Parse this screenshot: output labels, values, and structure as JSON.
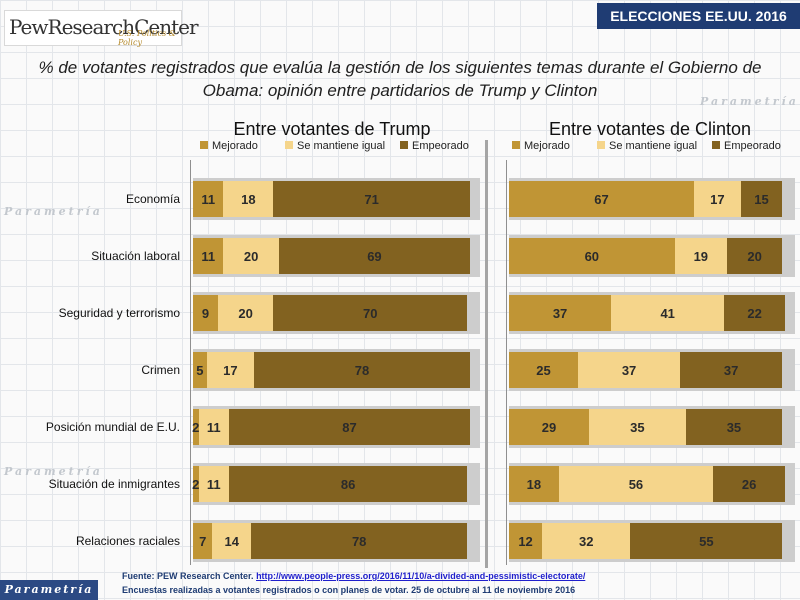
{
  "banner": "ELECCIONES EE.UU. 2016",
  "logo": {
    "main": "PewResearchCenter",
    "sub": "U.S. Politics & Policy"
  },
  "watermark": "Parametría",
  "footer_logo": "Parametría",
  "source_label": "Fuente: PEW Research Center.",
  "source_url": "http://www.people-press.org/2016/11/10/a-divided-and-pessimistic-electorate/",
  "note": "Encuestas realizadas a votantes registrados o con planes de votar. 25 de octubre al 11 de noviembre 2016",
  "colors": {
    "mejorado": "#c09535",
    "igual": "#f5d58b",
    "empeorado": "#826220"
  },
  "chart_data": {
    "type": "bar",
    "stacked": true,
    "orientation": "horizontal",
    "title": "% de votantes registrados que evalúa la gestión de los siguientes temas durante el Gobierno de Obama:  opinión entre partidarios de Trump y Clinton",
    "categories": [
      "Economía",
      "Situación laboral",
      "Seguridad y terrorismo",
      "Crimen",
      "Posición mundial de E.U.",
      "Situación de inmigrantes",
      "Relaciones raciales"
    ],
    "legend": [
      "Mejorado",
      "Se mantiene igual",
      "Empeorado"
    ],
    "panels": [
      {
        "title": "Entre votantes de Trump",
        "series": [
          {
            "name": "Mejorado",
            "values": [
              11,
              11,
              9,
              5,
              2,
              2,
              7
            ]
          },
          {
            "name": "Se mantiene igual",
            "values": [
              18,
              20,
              20,
              17,
              11,
              11,
              14
            ]
          },
          {
            "name": "Empeorado",
            "values": [
              71,
              69,
              70,
              78,
              87,
              86,
              78
            ]
          }
        ]
      },
      {
        "title": "Entre votantes de Clinton",
        "series": [
          {
            "name": "Mejorado",
            "values": [
              67,
              60,
              37,
              25,
              29,
              18,
              12
            ]
          },
          {
            "name": "Se mantiene igual",
            "values": [
              17,
              19,
              41,
              37,
              35,
              56,
              32
            ]
          },
          {
            "name": "Empeorado",
            "values": [
              15,
              20,
              22,
              37,
              35,
              26,
              55
            ]
          }
        ]
      }
    ]
  }
}
